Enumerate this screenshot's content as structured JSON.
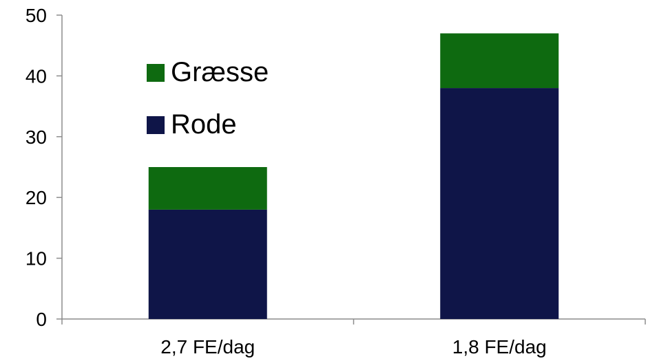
{
  "chart_data": {
    "type": "bar",
    "stacked": true,
    "categories": [
      "2,7 FE/dag",
      "1,8 FE/dag"
    ],
    "series": [
      {
        "name": "Rode",
        "values": [
          18,
          38
        ],
        "color": "#0f1548"
      },
      {
        "name": "Græsse",
        "values": [
          7,
          9
        ],
        "color": "#0e6a10"
      }
    ],
    "ylim": [
      0,
      50
    ],
    "yticks": [
      0,
      10,
      20,
      30,
      40,
      50
    ],
    "legend": {
      "placement": "upper-left",
      "order": [
        "Græsse",
        "Rode"
      ]
    },
    "grid": false,
    "axis_color": "#8c8c8c"
  }
}
